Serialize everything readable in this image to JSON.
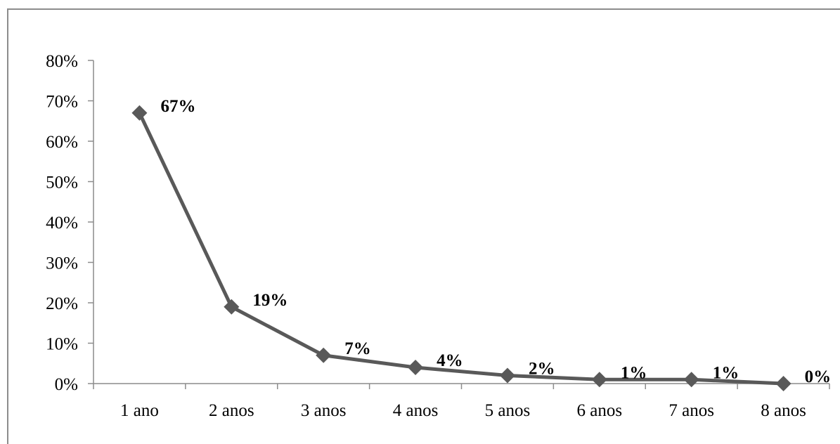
{
  "chart_data": {
    "type": "line",
    "categories": [
      "1 ano",
      "2 anos",
      "3 anos",
      "4 anos",
      "5 anos",
      "6 anos",
      "7 anos",
      "8 anos"
    ],
    "values": [
      67,
      19,
      7,
      4,
      2,
      1,
      1,
      0
    ],
    "data_labels": [
      "67%",
      "19%",
      "7%",
      "4%",
      "2%",
      "1%",
      "1%",
      "0%"
    ],
    "y_tick_labels": [
      "0%",
      "10%",
      "20%",
      "30%",
      "40%",
      "50%",
      "60%",
      "70%",
      "80%"
    ],
    "ylim": [
      0,
      80
    ],
    "y_unit": "%",
    "title": "",
    "xlabel": "",
    "ylabel": "",
    "grid": false,
    "legend": "none",
    "series_color": "#595959",
    "axis_color": "#8c8c8c"
  }
}
